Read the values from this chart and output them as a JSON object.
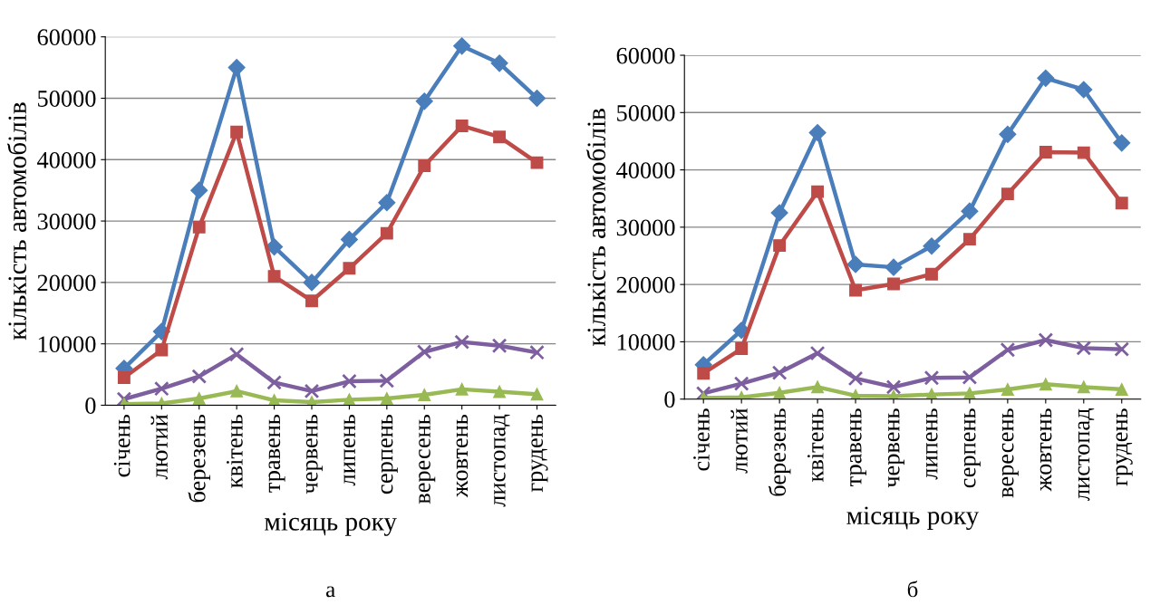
{
  "chart_data": [
    {
      "type": "line",
      "xlabel": "місяць року",
      "ylabel": "кількість автомобілів",
      "annotations": [
        "а"
      ],
      "categories": [
        "січень",
        "лютий",
        "березень",
        "квітень",
        "травень",
        "червень",
        "липень",
        "серпень",
        "вересень",
        "жовтень",
        "листопад",
        "грудень"
      ],
      "ylim": [
        0,
        60000
      ],
      "yticks": [
        0,
        10000,
        20000,
        30000,
        40000,
        50000,
        60000
      ],
      "grid": "y",
      "series": [
        {
          "color": "#4a7ebb",
          "marker": "diamond",
          "values": [
            6000,
            12000,
            35000,
            55000,
            25800,
            20000,
            27000,
            33000,
            49500,
            58500,
            55700,
            50000
          ]
        },
        {
          "color": "#be4b48",
          "marker": "square",
          "values": [
            4500,
            9000,
            29000,
            44500,
            21000,
            17000,
            22300,
            28000,
            39000,
            45500,
            43700,
            39500
          ]
        },
        {
          "color": "#7d5fa0",
          "marker": "cross",
          "values": [
            1000,
            2700,
            4700,
            8300,
            3700,
            2300,
            3900,
            4000,
            8700,
            10300,
            9700,
            8600
          ]
        },
        {
          "color": "#98b954",
          "marker": "triangle",
          "values": [
            200,
            300,
            1100,
            2300,
            800,
            500,
            900,
            1100,
            1700,
            2600,
            2200,
            1800
          ]
        }
      ]
    },
    {
      "type": "line",
      "xlabel": "місяць року",
      "ylabel": "кількість автомобілів",
      "annotations": [
        "б"
      ],
      "categories": [
        "січень",
        "лютий",
        "березень",
        "квітень",
        "травень",
        "червень",
        "липень",
        "серпень",
        "вересень",
        "жовтень",
        "листопад",
        "грудень"
      ],
      "ylim": [
        0,
        60000
      ],
      "yticks": [
        0,
        10000,
        20000,
        30000,
        40000,
        50000,
        60000
      ],
      "grid": "y",
      "series": [
        {
          "color": "#4a7ebb",
          "marker": "diamond",
          "values": [
            6000,
            12000,
            32500,
            46500,
            23500,
            23000,
            26700,
            32800,
            46200,
            56000,
            54000,
            44700
          ]
        },
        {
          "color": "#be4b48",
          "marker": "square",
          "values": [
            4500,
            8800,
            26800,
            36200,
            19000,
            20100,
            21800,
            27900,
            35800,
            43100,
            43000,
            34200
          ]
        },
        {
          "color": "#7d5fa0",
          "marker": "cross",
          "values": [
            1000,
            2700,
            4600,
            8000,
            3600,
            2100,
            3700,
            3800,
            8600,
            10300,
            8900,
            8700
          ]
        },
        {
          "color": "#98b954",
          "marker": "triangle",
          "values": [
            200,
            300,
            1100,
            2100,
            600,
            500,
            800,
            1000,
            1700,
            2600,
            2100,
            1700
          ]
        }
      ]
    }
  ]
}
